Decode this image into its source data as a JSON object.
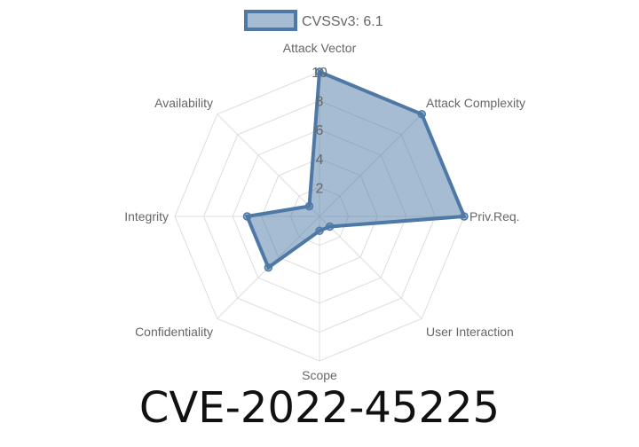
{
  "chart_data": {
    "type": "radar",
    "categories": [
      "Attack Vector",
      "Attack Complexity",
      "Priv.Req.",
      "User Interaction",
      "Scope",
      "Confidentiality",
      "Integrity",
      "Availability"
    ],
    "series": [
      {
        "name": "CVSSv3: 6.1",
        "values": [
          10,
          10,
          10,
          1,
          1,
          5,
          5,
          1
        ],
        "color": "#4e79a7",
        "fill": "rgba(78,121,167,0.5)"
      }
    ],
    "rlim": [
      0,
      10
    ],
    "ticks": [
      "2",
      "4",
      "6",
      "8",
      "10"
    ],
    "grid": true,
    "legend": "top"
  },
  "title": "CVE-2022-45225"
}
